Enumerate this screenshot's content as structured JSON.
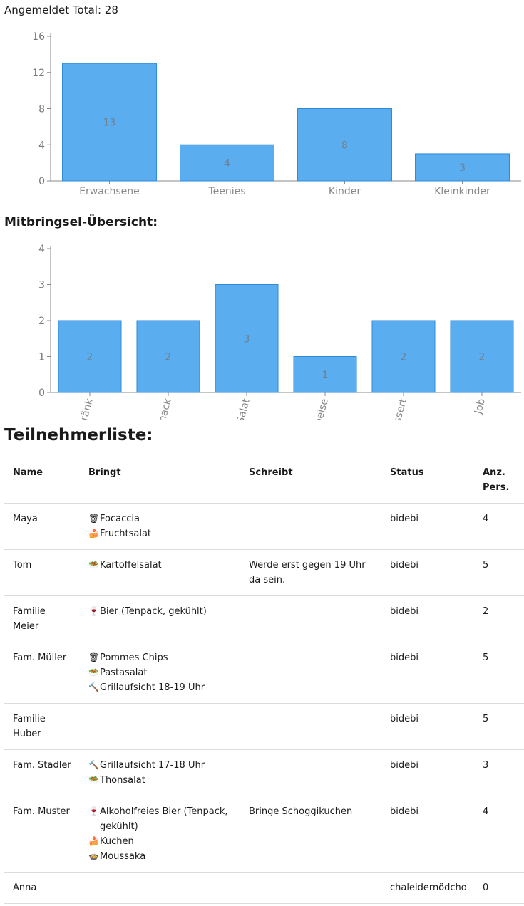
{
  "header": {
    "total_label": "Angemeldet Total: 28"
  },
  "sections": {
    "mitbringsel_title": "Mitbringsel-Übersicht:",
    "teilnehmer_title": "Teilnehmerliste:"
  },
  "colors": {
    "bar_fill": "#5aaeef",
    "bar_stroke": "#2f8ad8"
  },
  "chart_data": [
    {
      "type": "bar",
      "categories": [
        "Erwachsene",
        "Teenies",
        "Kinder",
        "Kleinkinder"
      ],
      "values": [
        13,
        4,
        8,
        3
      ],
      "yticks": [
        0,
        4,
        8,
        12,
        16
      ],
      "ylim": [
        0,
        16
      ],
      "grid": false,
      "data_labels": true
    },
    {
      "type": "bar",
      "categories": [
        "Getränk",
        "Snack",
        "Salat",
        "Speise",
        "Dessert",
        "Job"
      ],
      "values": [
        2,
        2,
        3,
        1,
        2,
        2
      ],
      "yticks": [
        0,
        1,
        2,
        3,
        4
      ],
      "ylim": [
        0,
        4
      ],
      "grid": false,
      "data_labels": true,
      "xtick_rotation": "rotated"
    }
  ],
  "table": {
    "headers": {
      "name": "Name",
      "bringt": "Bringt",
      "schreibt": "Schreibt",
      "status": "Status",
      "pers": "Anz. Pers."
    },
    "rows": [
      {
        "name": "Maya",
        "bringt": [
          {
            "icon": "snack-icon",
            "glyph": "🗑",
            "text": "Focaccia"
          },
          {
            "icon": "dessert-icon",
            "glyph": "🍰",
            "text": "Fruchtsalat"
          }
        ],
        "schreibt": "",
        "status": "bidebi",
        "pers": "4"
      },
      {
        "name": "Tom",
        "bringt": [
          {
            "icon": "salad-icon",
            "glyph": "🥗",
            "text": "Kartoffelsalat"
          }
        ],
        "schreibt": "Werde erst gegen 19 Uhr da sein.",
        "status": "bidebi",
        "pers": "5"
      },
      {
        "name": "Familie Meier",
        "bringt": [
          {
            "icon": "drink-icon",
            "glyph": "🍷",
            "text": "Bier (Tenpack, gekühlt)"
          }
        ],
        "schreibt": "",
        "status": "bidebi",
        "pers": "2"
      },
      {
        "name": "Fam. Müller",
        "bringt": [
          {
            "icon": "snack-icon",
            "glyph": "🗑",
            "text": "Pommes Chips"
          },
          {
            "icon": "salad-icon",
            "glyph": "🥗",
            "text": "Pastasalat"
          },
          {
            "icon": "job-icon",
            "glyph": "🔨",
            "text": "Grillaufsicht 18-19 Uhr"
          }
        ],
        "schreibt": "",
        "status": "bidebi",
        "pers": "5"
      },
      {
        "name": "Familie Huber",
        "bringt": [],
        "schreibt": "",
        "status": "bidebi",
        "pers": "5"
      },
      {
        "name": "Fam. Stadler",
        "bringt": [
          {
            "icon": "job-icon",
            "glyph": "🔨",
            "text": "Grillaufsicht 17-18 Uhr"
          },
          {
            "icon": "salad-icon",
            "glyph": "🥗",
            "text": "Thonsalat"
          }
        ],
        "schreibt": "",
        "status": "bidebi",
        "pers": "3"
      },
      {
        "name": "Fam. Muster",
        "bringt": [
          {
            "icon": "drink-icon",
            "glyph": "🍷",
            "text": "Alkoholfreies Bier (Tenpack, gekühlt)"
          },
          {
            "icon": "dessert-icon",
            "glyph": "🍰",
            "text": "Kuchen"
          },
          {
            "icon": "dish-icon",
            "glyph": "🍲",
            "text": "Moussaka"
          }
        ],
        "schreibt": "Bringe Schoggikuchen",
        "status": "bidebi",
        "pers": "4"
      },
      {
        "name": "Anna",
        "bringt": [],
        "schreibt": "",
        "status": "chaleidernödcho",
        "pers": "0"
      }
    ]
  }
}
